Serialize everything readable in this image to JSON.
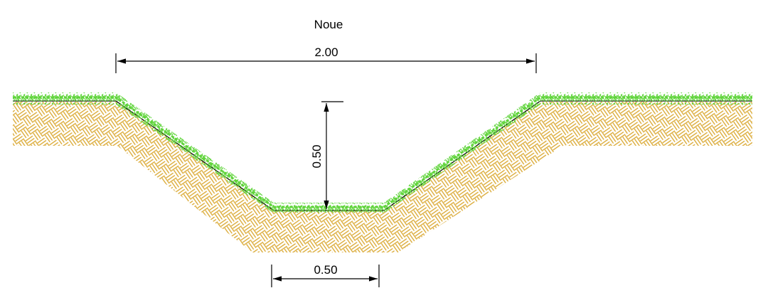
{
  "title": "Noue",
  "dimensions": {
    "top_width": "2.00",
    "depth": "0.50",
    "bottom_width": "0.50"
  },
  "colors": {
    "soil_hatch": "#d9a52a",
    "grass": "#5fd43a",
    "grass_dark": "#2fa81c",
    "line": "#000000"
  }
}
